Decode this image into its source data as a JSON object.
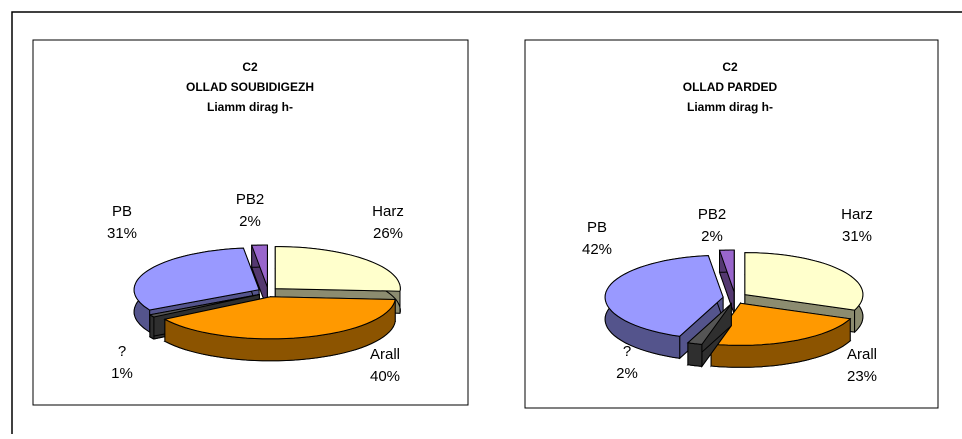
{
  "chart_data": [
    {
      "type": "pie3d",
      "title": [
        "C2",
        "OLLAD SOUBIDIGEZH",
        "Liamm dirag h-"
      ],
      "categories": [
        "Harz",
        "Arall",
        "?",
        "PB",
        "PB2"
      ],
      "values": [
        26,
        40,
        1,
        31,
        2
      ],
      "value_labels": [
        "26%",
        "40%",
        "1%",
        "31%",
        "2%"
      ],
      "colors": [
        "#ffffcc",
        "#ff9900",
        "#555555",
        "#9999ff",
        "#9966cc"
      ]
    },
    {
      "type": "pie3d",
      "title": [
        "C2",
        "OLLAD PARDED",
        "Liamm dirag h-"
      ],
      "categories": [
        "Harz",
        "Arall",
        "?",
        "PB",
        "PB2"
      ],
      "values": [
        31,
        23,
        2,
        42,
        2
      ],
      "value_labels": [
        "31%",
        "23%",
        "2%",
        "42%",
        "2%"
      ],
      "colors": [
        "#ffffcc",
        "#ff9900",
        "#555555",
        "#9999ff",
        "#9966cc"
      ]
    }
  ]
}
